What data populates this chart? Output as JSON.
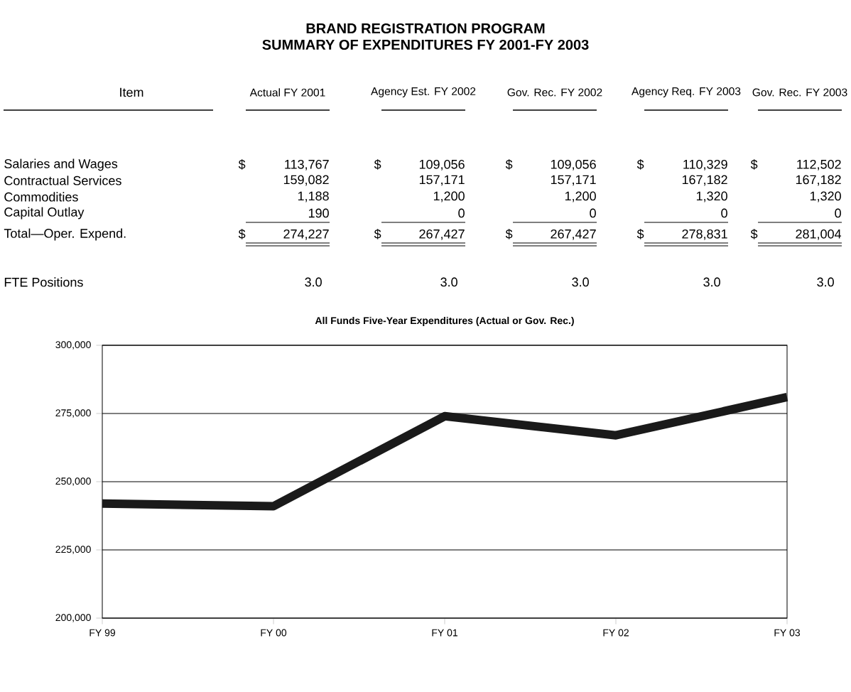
{
  "chart_data": [
    {
      "type": "other",
      "title": "BRAND REGISTRATION PROGRAM",
      "subtitle": "SUMMARY OF EXPENDITURES FY 2001-FY 2003",
      "ylabel": "Item",
      "categories": [
        "Actual FY 2001",
        "Agency Est. FY 2002",
        "Gov. Rec. FY 2002",
        "Agency Req. FY 2003",
        "Gov. Rec. FY 2003"
      ],
      "y_categories": [
        "Salaries and Wages",
        "Contractual Services",
        "Commodities",
        "Capital Outlay",
        "Total—Oper. Expend.",
        "FTE Positions"
      ],
      "cell_labels": [
        [
          "$ 113,767",
          "$ 109,056",
          "$ 109,056",
          "$ 110,329",
          "$ 112,502"
        ],
        [
          "159,082",
          "157,171",
          "157,171",
          "167,182",
          "167,182"
        ],
        [
          "1,188",
          "1,200",
          "1,200",
          "1,320",
          "1,320"
        ],
        [
          "190",
          "0",
          "0",
          "0",
          "0"
        ],
        [
          "$ 274,227",
          "$ 267,427",
          "$ 267,427",
          "$ 278,831",
          "$ 281,004"
        ],
        [
          "3.0",
          "3.0",
          "3.0",
          "3.0",
          "3.0"
        ]
      ]
    },
    {
      "type": "line",
      "title": "All Funds Five-Year Expenditures (Actual or Gov. Rec.)",
      "categories": [
        "FY 99",
        "FY 00",
        "FY 01",
        "FY 02",
        "FY 03"
      ],
      "values": [
        242000,
        241000,
        274000,
        267000,
        281000
      ],
      "color": "#1a1a1a",
      "ylim": [
        200000,
        300000
      ],
      "yticks": [
        {
          "value": 200000,
          "label": "200,000"
        },
        {
          "value": 225000,
          "label": "225,000"
        },
        {
          "value": 250000,
          "label": "250,000"
        },
        {
          "value": 275000,
          "label": "275,000"
        },
        {
          "value": 300000,
          "label": "300,000"
        }
      ],
      "grid": "y"
    }
  ]
}
